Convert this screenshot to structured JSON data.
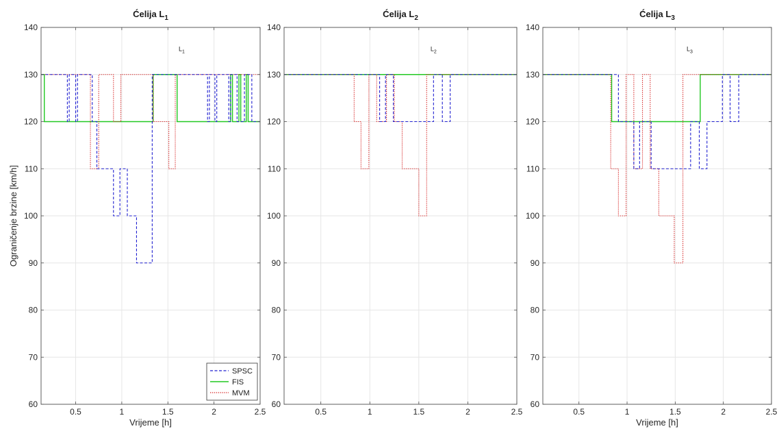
{
  "figure": {
    "shared_ylabel": "Ograničenje brzine [km/h]"
  },
  "colors": {
    "SPSC": "#1f1fd0",
    "FIS": "#21c821",
    "MVM": "#d62020",
    "grid": "#e6e6e6",
    "axis": "#4d4d4d"
  },
  "chart_data": [
    {
      "type": "line",
      "title_main": "Ćelija L",
      "title_sub": "1",
      "annotation_main": "L",
      "annotation_sub": "1",
      "annotation_at": {
        "x": 1.65,
        "y": 135
      },
      "xlabel": "Vrijeme [h]",
      "ylabel": "Ograničenje brzine [km/h]",
      "xlim": [
        0.125,
        2.5
      ],
      "ylim": [
        60,
        140
      ],
      "xticks": [
        0.5,
        1,
        1.5,
        2,
        2.5
      ],
      "xtick_labels": [
        "0.5",
        "1",
        "1.5",
        "2",
        "2.5"
      ],
      "yticks": [
        60,
        70,
        80,
        90,
        100,
        110,
        120,
        130,
        140
      ],
      "ytick_labels": [
        "60",
        "70",
        "80",
        "90",
        "100",
        "110",
        "120",
        "130",
        "140"
      ],
      "grid": true,
      "legend": {
        "position": "bottom-right",
        "entries": [
          "SPSC",
          "FIS",
          "MVM"
        ]
      },
      "series": [
        {
          "name": "SPSC",
          "style": "dashed",
          "points": [
            [
              0.125,
              130
            ],
            [
              0.41,
              130
            ],
            [
              0.41,
              120
            ],
            [
              0.43,
              120
            ],
            [
              0.43,
              130
            ],
            [
              0.5,
              130
            ],
            [
              0.5,
              120
            ],
            [
              0.52,
              120
            ],
            [
              0.52,
              130
            ],
            [
              0.68,
              130
            ],
            [
              0.68,
              120
            ],
            [
              0.73,
              120
            ],
            [
              0.73,
              110
            ],
            [
              0.91,
              110
            ],
            [
              0.91,
              100
            ],
            [
              0.98,
              100
            ],
            [
              0.98,
              110
            ],
            [
              1.06,
              110
            ],
            [
              1.06,
              100
            ],
            [
              1.16,
              100
            ],
            [
              1.16,
              90
            ],
            [
              1.33,
              90
            ],
            [
              1.33,
              130
            ],
            [
              1.93,
              130
            ],
            [
              1.93,
              120
            ],
            [
              1.95,
              120
            ],
            [
              1.95,
              130
            ],
            [
              2.01,
              130
            ],
            [
              2.01,
              120
            ],
            [
              2.03,
              120
            ],
            [
              2.03,
              130
            ],
            [
              2.16,
              130
            ],
            [
              2.16,
              120
            ],
            [
              2.18,
              120
            ],
            [
              2.18,
              130
            ],
            [
              2.25,
              130
            ],
            [
              2.25,
              120
            ],
            [
              2.33,
              120
            ],
            [
              2.33,
              130
            ],
            [
              2.41,
              130
            ],
            [
              2.41,
              120
            ],
            [
              2.5,
              120
            ]
          ]
        },
        {
          "name": "FIS",
          "style": "solid",
          "points": [
            [
              0.125,
              130
            ],
            [
              0.16,
              130
            ],
            [
              0.16,
              120
            ],
            [
              1.34,
              120
            ],
            [
              1.34,
              130
            ],
            [
              1.6,
              130
            ],
            [
              1.6,
              120
            ],
            [
              2.18,
              120
            ],
            [
              2.18,
              130
            ],
            [
              2.2,
              130
            ],
            [
              2.2,
              120
            ],
            [
              2.27,
              120
            ],
            [
              2.27,
              130
            ],
            [
              2.29,
              130
            ],
            [
              2.29,
              120
            ],
            [
              2.35,
              120
            ],
            [
              2.35,
              130
            ],
            [
              2.37,
              130
            ],
            [
              2.37,
              120
            ],
            [
              2.5,
              120
            ]
          ]
        },
        {
          "name": "MVM",
          "style": "dotted",
          "points": [
            [
              0.125,
              130
            ],
            [
              0.66,
              130
            ],
            [
              0.66,
              110
            ],
            [
              0.75,
              110
            ],
            [
              0.75,
              130
            ],
            [
              0.91,
              130
            ],
            [
              0.91,
              120
            ],
            [
              0.99,
              120
            ],
            [
              0.99,
              130
            ],
            [
              1.34,
              130
            ],
            [
              1.34,
              120
            ],
            [
              1.51,
              120
            ],
            [
              1.51,
              110
            ],
            [
              1.58,
              110
            ],
            [
              1.58,
              130
            ],
            [
              2.5,
              130
            ]
          ]
        }
      ]
    },
    {
      "type": "line",
      "title_main": "Ćelija L",
      "title_sub": "2",
      "annotation_main": "L",
      "annotation_sub": "2",
      "annotation_at": {
        "x": 1.65,
        "y": 135
      },
      "xlabel": "",
      "ylabel": "",
      "xlim": [
        0.125,
        2.5
      ],
      "ylim": [
        60,
        140
      ],
      "xticks": [
        0.5,
        1,
        1.5,
        2,
        2.5
      ],
      "xtick_labels": [
        "0.5",
        "1",
        "1.5",
        "2",
        "2.5"
      ],
      "yticks": [
        60,
        70,
        80,
        90,
        100,
        110,
        120,
        130,
        140
      ],
      "ytick_labels": [
        "60",
        "70",
        "80",
        "90",
        "100",
        "110",
        "120",
        "130",
        "140"
      ],
      "grid": true,
      "series": [
        {
          "name": "SPSC",
          "style": "dashed",
          "points": [
            [
              0.125,
              130
            ],
            [
              1.1,
              130
            ],
            [
              1.1,
              120
            ],
            [
              1.16,
              120
            ],
            [
              1.16,
              130
            ],
            [
              1.24,
              130
            ],
            [
              1.24,
              120
            ],
            [
              1.65,
              120
            ],
            [
              1.65,
              130
            ],
            [
              1.74,
              130
            ],
            [
              1.74,
              120
            ],
            [
              1.82,
              120
            ],
            [
              1.82,
              130
            ],
            [
              2.5,
              130
            ]
          ]
        },
        {
          "name": "FIS",
          "style": "solid",
          "points": [
            [
              0.125,
              130
            ],
            [
              2.5,
              130
            ]
          ]
        },
        {
          "name": "MVM",
          "style": "dotted",
          "points": [
            [
              0.125,
              130
            ],
            [
              0.84,
              130
            ],
            [
              0.84,
              120
            ],
            [
              0.91,
              120
            ],
            [
              0.91,
              110
            ],
            [
              0.99,
              110
            ],
            [
              0.99,
              130
            ],
            [
              1.07,
              130
            ],
            [
              1.07,
              120
            ],
            [
              1.17,
              120
            ],
            [
              1.17,
              130
            ],
            [
              1.25,
              130
            ],
            [
              1.25,
              120
            ],
            [
              1.33,
              120
            ],
            [
              1.33,
              110
            ],
            [
              1.5,
              110
            ],
            [
              1.5,
              100
            ],
            [
              1.58,
              100
            ],
            [
              1.58,
              130
            ],
            [
              2.5,
              130
            ]
          ]
        }
      ]
    },
    {
      "type": "line",
      "title_main": "Ćelija L",
      "title_sub": "3",
      "annotation_main": "L",
      "annotation_sub": "3",
      "annotation_at": {
        "x": 1.65,
        "y": 135
      },
      "xlabel": "Vrijeme [h]",
      "ylabel": "",
      "xlim": [
        0.125,
        2.5
      ],
      "ylim": [
        60,
        140
      ],
      "xticks": [
        0.5,
        1,
        1.5,
        2,
        2.5
      ],
      "xtick_labels": [
        "0.5",
        "1",
        "1.5",
        "2",
        "2.5"
      ],
      "yticks": [
        60,
        70,
        80,
        90,
        100,
        110,
        120,
        130,
        140
      ],
      "ytick_labels": [
        "60",
        "70",
        "80",
        "90",
        "100",
        "110",
        "120",
        "130",
        "140"
      ],
      "grid": true,
      "series": [
        {
          "name": "SPSC",
          "style": "dashed",
          "points": [
            [
              0.125,
              130
            ],
            [
              0.91,
              130
            ],
            [
              0.91,
              120
            ],
            [
              1.07,
              120
            ],
            [
              1.07,
              110
            ],
            [
              1.13,
              110
            ],
            [
              1.13,
              120
            ],
            [
              1.25,
              120
            ],
            [
              1.25,
              110
            ],
            [
              1.66,
              110
            ],
            [
              1.66,
              120
            ],
            [
              1.75,
              120
            ],
            [
              1.75,
              110
            ],
            [
              1.83,
              110
            ],
            [
              1.83,
              120
            ],
            [
              1.99,
              120
            ],
            [
              1.99,
              130
            ],
            [
              2.07,
              130
            ],
            [
              2.07,
              120
            ],
            [
              2.16,
              120
            ],
            [
              2.16,
              130
            ],
            [
              2.5,
              130
            ]
          ]
        },
        {
          "name": "FIS",
          "style": "solid",
          "points": [
            [
              0.125,
              130
            ],
            [
              0.84,
              130
            ],
            [
              0.84,
              120
            ],
            [
              1.76,
              120
            ],
            [
              1.76,
              130
            ],
            [
              2.5,
              130
            ]
          ]
        },
        {
          "name": "MVM",
          "style": "dotted",
          "points": [
            [
              0.125,
              130
            ],
            [
              0.83,
              130
            ],
            [
              0.83,
              110
            ],
            [
              0.91,
              110
            ],
            [
              0.91,
              100
            ],
            [
              0.99,
              100
            ],
            [
              0.99,
              130
            ],
            [
              1.07,
              130
            ],
            [
              1.07,
              110
            ],
            [
              1.16,
              110
            ],
            [
              1.16,
              130
            ],
            [
              1.24,
              130
            ],
            [
              1.24,
              110
            ],
            [
              1.33,
              110
            ],
            [
              1.33,
              100
            ],
            [
              1.49,
              100
            ],
            [
              1.49,
              90
            ],
            [
              1.58,
              90
            ],
            [
              1.58,
              130
            ],
            [
              2.5,
              130
            ]
          ]
        }
      ]
    }
  ]
}
